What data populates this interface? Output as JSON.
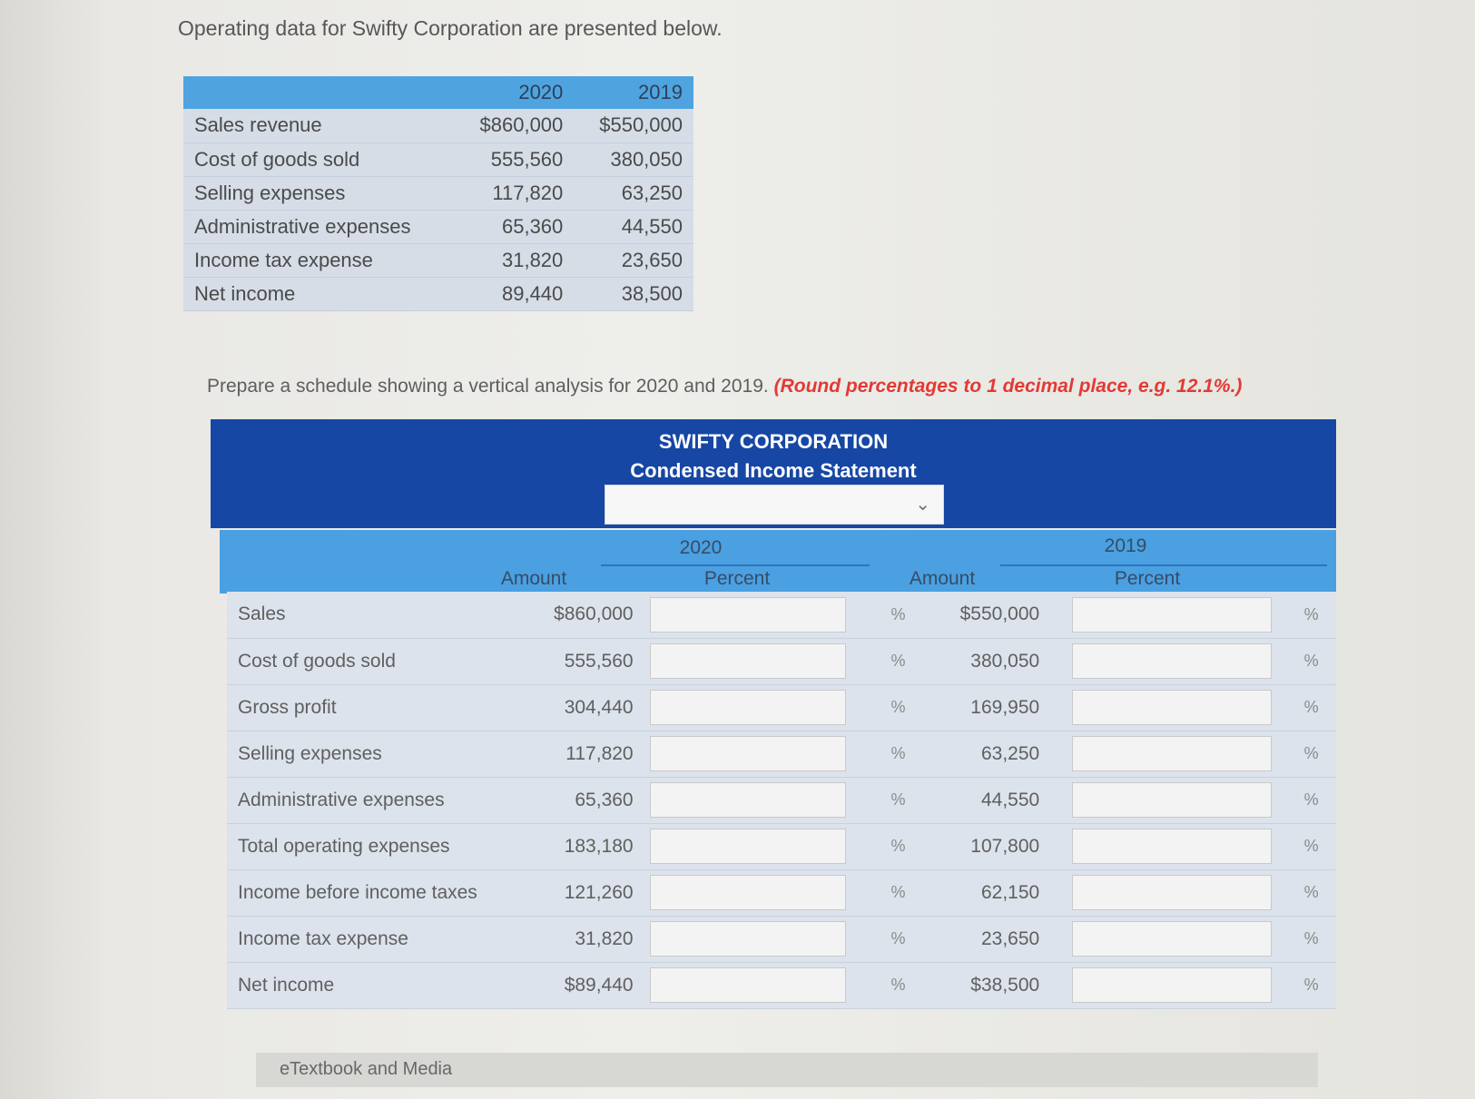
{
  "intro": "Operating data for Swifty Corporation are presented below.",
  "data_table": {
    "years": [
      "2020",
      "2019"
    ],
    "rows": [
      {
        "label": "Sales revenue",
        "v2020": "$860,000",
        "v2019": "$550,000"
      },
      {
        "label": "Cost of goods sold",
        "v2020": "555,560",
        "v2019": "380,050"
      },
      {
        "label": "Selling expenses",
        "v2020": "117,820",
        "v2019": "63,250"
      },
      {
        "label": "Administrative expenses",
        "v2020": "65,360",
        "v2019": "44,550"
      },
      {
        "label": "Income tax expense",
        "v2020": "31,820",
        "v2019": "23,650"
      },
      {
        "label": "Net income",
        "v2020": "89,440",
        "v2019": "38,500"
      }
    ]
  },
  "instruction": {
    "text": "Prepare a schedule showing a vertical analysis for 2020 and 2019.",
    "note": "(Round percentages to 1 decimal place, e.g. 12.1%.)"
  },
  "statement": {
    "company": "SWIFTY CORPORATION",
    "subtitle": "Condensed Income Statement",
    "dropdown_value": "",
    "chevron_icon": "chevron-down-icon",
    "year_2020": "2020",
    "year_2019": "2019",
    "amount_label": "Amount",
    "percent_label": "Percent",
    "percent_symbol": "%",
    "rows": [
      {
        "label": "Sales",
        "amount_2020": "$860,000",
        "percent_2020": "",
        "amount_2019": "$550,000",
        "percent_2019": ""
      },
      {
        "label": "Cost of goods sold",
        "amount_2020": "555,560",
        "percent_2020": "",
        "amount_2019": "380,050",
        "percent_2019": ""
      },
      {
        "label": "Gross profit",
        "amount_2020": "304,440",
        "percent_2020": "",
        "amount_2019": "169,950",
        "percent_2019": ""
      },
      {
        "label": "Selling expenses",
        "amount_2020": "117,820",
        "percent_2020": "",
        "amount_2019": "63,250",
        "percent_2019": ""
      },
      {
        "label": "Administrative expenses",
        "amount_2020": "65,360",
        "percent_2020": "",
        "amount_2019": "44,550",
        "percent_2019": ""
      },
      {
        "label": "Total operating expenses",
        "amount_2020": "183,180",
        "percent_2020": "",
        "amount_2019": "107,800",
        "percent_2019": ""
      },
      {
        "label": "Income before income taxes",
        "amount_2020": "121,260",
        "percent_2020": "",
        "amount_2019": "62,150",
        "percent_2019": ""
      },
      {
        "label": "Income tax expense",
        "amount_2020": "31,820",
        "percent_2020": "",
        "amount_2019": "23,650",
        "percent_2019": ""
      },
      {
        "label": "Net income",
        "amount_2020": "$89,440",
        "percent_2020": "",
        "amount_2019": "$38,500",
        "percent_2019": ""
      }
    ]
  },
  "footer": {
    "label": "eTextbook and Media"
  },
  "colors": {
    "dark_blue": "#1747a4",
    "light_blue": "#4aa0e0",
    "red_note": "#e23a35"
  }
}
